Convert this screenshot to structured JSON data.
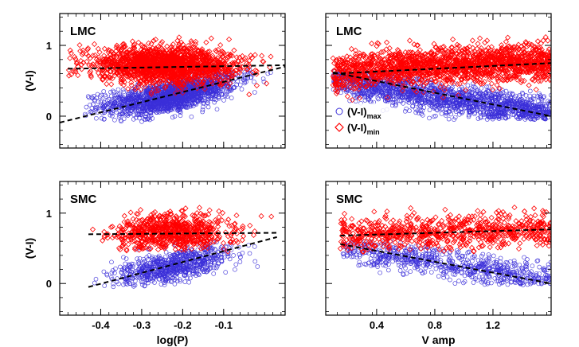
{
  "chart_data": [
    {
      "type": "scatter",
      "panel_label": "LMC",
      "xlabel": "",
      "ylabel": "(V-I)",
      "xlim": [
        -0.5,
        0.05
      ],
      "ylim": [
        -0.45,
        1.45
      ],
      "xticks": [
        -0.4,
        -0.3,
        -0.2,
        -0.1
      ],
      "yticks": [
        0,
        1
      ],
      "show_xtick_labels": false,
      "show_ytick_labels": true,
      "series": [
        {
          "key": "max",
          "marker": "circle",
          "color": "#3b2fd9",
          "center": {
            "x": [
              -0.44,
              -0.36,
              -0.3,
              -0.25,
              -0.2,
              -0.15,
              -0.1,
              -0.05,
              0.03
            ],
            "y": [
              0.15,
              0.18,
              0.2,
              0.25,
              0.32,
              0.38,
              0.45,
              0.55,
              0.65
            ]
          },
          "spread": {
            "x": [
              -0.44,
              0.03
            ],
            "y": [
              -0.1,
              0.7
            ]
          }
        },
        {
          "key": "min",
          "marker": "diamond",
          "color": "#ff0000",
          "center": {
            "x": [
              -0.48,
              -0.4,
              -0.3,
              -0.2,
              -0.1,
              0.0,
              0.03
            ],
            "y": [
              0.8,
              0.75,
              0.72,
              0.72,
              0.72,
              0.7,
              0.68
            ]
          },
          "spread": {
            "x": [
              -0.48,
              0.03
            ],
            "y": [
              0.3,
              1.12
            ]
          }
        }
      ],
      "fits": [
        {
          "series": "min",
          "x": [
            -0.48,
            0.05
          ],
          "y": [
            0.67,
            0.72
          ]
        },
        {
          "series": "max",
          "x": [
            -0.5,
            0.05
          ],
          "y": [
            -0.09,
            0.7
          ]
        }
      ]
    },
    {
      "type": "scatter",
      "panel_label": "LMC",
      "xlabel": "",
      "ylabel": "",
      "xlim": [
        0.05,
        1.6
      ],
      "ylim": [
        -0.45,
        1.45
      ],
      "xticks": [
        0.4,
        0.8,
        1.2
      ],
      "yticks": [
        0,
        1
      ],
      "show_xtick_labels": false,
      "show_ytick_labels": false,
      "series": [
        {
          "key": "max",
          "marker": "circle",
          "color": "#3b2fd9",
          "center": {
            "x": [
              0.1,
              0.3,
              0.6,
              0.9,
              1.2,
              1.5
            ],
            "y": [
              0.55,
              0.45,
              0.35,
              0.25,
              0.15,
              0.05
            ]
          },
          "spread": {
            "x": [
              0.1,
              1.6
            ],
            "y": [
              -0.05,
              0.65
            ]
          }
        },
        {
          "key": "min",
          "marker": "diamond",
          "color": "#ff0000",
          "center": {
            "x": [
              0.1,
              0.4,
              0.8,
              1.2,
              1.6
            ],
            "y": [
              0.6,
              0.68,
              0.72,
              0.74,
              0.76
            ]
          },
          "spread": {
            "x": [
              0.1,
              1.6
            ],
            "y": [
              0.15,
              1.12
            ]
          }
        }
      ],
      "fits": [
        {
          "series": "min",
          "x": [
            0.1,
            1.6
          ],
          "y": [
            0.6,
            0.75
          ]
        },
        {
          "series": "max",
          "x": [
            0.1,
            1.6
          ],
          "y": [
            0.62,
            0.0
          ]
        }
      ],
      "legend": {
        "position": "left",
        "entries": [
          {
            "series": "max",
            "text": "(V-I)",
            "sub": "max"
          },
          {
            "series": "min",
            "text": "(V-I)",
            "sub": "min"
          }
        ]
      }
    },
    {
      "type": "scatter",
      "panel_label": "SMC",
      "xlabel": "log(P)",
      "ylabel": "(V-I)",
      "xlim": [
        -0.5,
        0.05
      ],
      "ylim": [
        -0.45,
        1.45
      ],
      "xticks": [
        -0.4,
        -0.3,
        -0.2,
        -0.1
      ],
      "xticklabels": [
        "-0.4",
        "-0.3",
        "-0.2",
        "-0.1"
      ],
      "yticks": [
        0,
        1
      ],
      "show_xtick_labels": true,
      "show_ytick_labels": true,
      "series": [
        {
          "key": "max",
          "marker": "circle",
          "color": "#3b2fd9",
          "center": {
            "x": [
              -0.42,
              -0.35,
              -0.3,
              -0.25,
              -0.2,
              -0.15,
              -0.1,
              -0.05,
              0.02
            ],
            "y": [
              0.02,
              0.08,
              0.15,
              0.2,
              0.28,
              0.35,
              0.42,
              0.5,
              0.62
            ]
          },
          "spread": {
            "x": [
              -0.42,
              0.02
            ],
            "y": [
              -0.05,
              0.6
            ]
          }
        },
        {
          "key": "min",
          "marker": "diamond",
          "color": "#ff0000",
          "center": {
            "x": [
              -0.42,
              -0.35,
              -0.3,
              -0.25,
              -0.2,
              -0.15,
              -0.1,
              0.02
            ],
            "y": [
              0.72,
              0.7,
              0.72,
              0.74,
              0.73,
              0.72,
              0.72,
              0.7
            ]
          },
          "spread": {
            "x": [
              -0.42,
              0.02
            ],
            "y": [
              0.45,
              1.1
            ]
          }
        }
      ],
      "fits": [
        {
          "series": "min",
          "x": [
            -0.43,
            0.03
          ],
          "y": [
            0.7,
            0.72
          ]
        },
        {
          "series": "max",
          "x": [
            -0.43,
            0.03
          ],
          "y": [
            -0.05,
            0.66
          ]
        }
      ]
    },
    {
      "type": "scatter",
      "panel_label": "SMC",
      "xlabel": "V amp",
      "ylabel": "",
      "xlim": [
        0.05,
        1.6
      ],
      "ylim": [
        -0.45,
        1.45
      ],
      "xticks": [
        0.4,
        0.8,
        1.2
      ],
      "xticklabels": [
        "0.4",
        "0.8",
        "1.2"
      ],
      "yticks": [
        0,
        1
      ],
      "show_xtick_labels": true,
      "show_ytick_labels": false,
      "series": [
        {
          "key": "max",
          "marker": "circle",
          "color": "#3b2fd9",
          "center": {
            "x": [
              0.15,
              0.4,
              0.7,
              1.0,
              1.3,
              1.6
            ],
            "y": [
              0.55,
              0.42,
              0.33,
              0.25,
              0.14,
              0.02
            ]
          },
          "spread": {
            "x": [
              0.15,
              1.6
            ],
            "y": [
              -0.02,
              0.6
            ]
          }
        },
        {
          "key": "min",
          "marker": "diamond",
          "color": "#ff0000",
          "center": {
            "x": [
              0.15,
              0.4,
              0.8,
              1.2,
              1.6
            ],
            "y": [
              0.68,
              0.7,
              0.73,
              0.75,
              0.77
            ]
          },
          "spread": {
            "x": [
              0.15,
              1.6
            ],
            "y": [
              0.45,
              1.1
            ]
          }
        }
      ],
      "fits": [
        {
          "series": "min",
          "x": [
            0.15,
            1.6
          ],
          "y": [
            0.68,
            0.77
          ]
        },
        {
          "series": "max",
          "x": [
            0.15,
            1.6
          ],
          "y": [
            0.56,
            0.0
          ]
        }
      ]
    }
  ]
}
